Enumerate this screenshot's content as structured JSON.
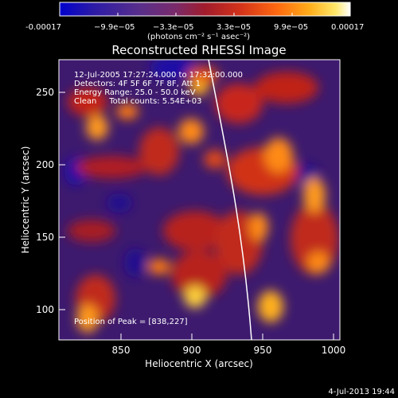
{
  "colorbar": {
    "tick_labels": [
      "-0.00017",
      "−9.9e−05",
      "−3.3e−05",
      "3.3e−05",
      "9.9e−05",
      "0.00017"
    ],
    "units": "(photons cm⁻² s⁻¹ asec⁻²)",
    "stops": [
      "#0000cc",
      "#2a1aa8",
      "#5a2f8a",
      "#7a2a6a",
      "#a11c2c",
      "#d2321a",
      "#ff6a10",
      "#ffad1a",
      "#ffe86a",
      "#ffffff"
    ]
  },
  "image": {
    "title": "Reconstructed RHESSI Image",
    "xlabel": "Heliocentric X (arcsec)",
    "ylabel": "Heliocentric Y (arcsec)",
    "x_ticks": [
      "850",
      "900",
      "950",
      "1000"
    ],
    "y_ticks": [
      "250",
      "200",
      "150",
      "100"
    ],
    "x_range": [
      810,
      1000
    ],
    "y_range": [
      80,
      270
    ]
  },
  "annotations": {
    "line1": "12-Jul-2005 17:27:24.000 to 17:32:00.000",
    "line2": "Detectors: 4F 5F 6F 7F 8F, Att 1",
    "line3": "Energy Range: 25.0 - 50.0 keV",
    "line4": "Clean     Total counts: 5.54E+03",
    "peak": "Position of Peak = [838,227]"
  },
  "footer": {
    "date": "4-Jul-2013 19:44"
  }
}
